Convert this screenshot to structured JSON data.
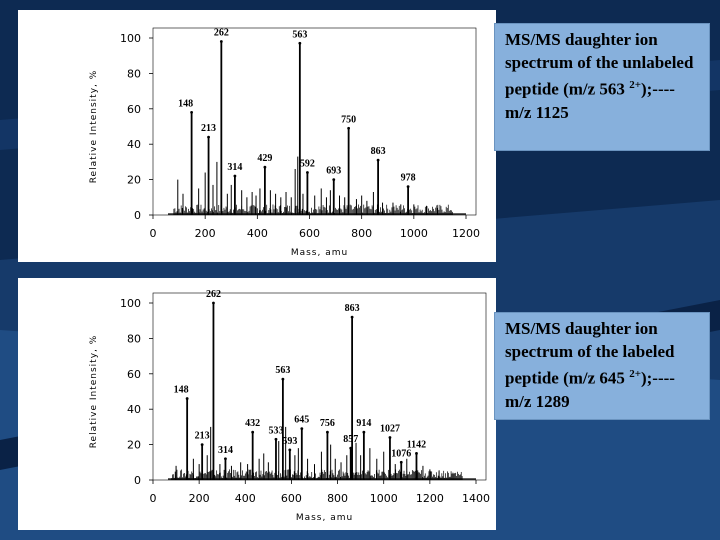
{
  "theme": {
    "slide_dark": "#0d2a52",
    "slide_mid": "#1f4c83",
    "caption_bg": "#87b0dc"
  },
  "captions": {
    "top": "MS/MS daughter ion spectrum of the unlabeled peptide (m/z 563 2+);---- m/z 1125",
    "bottom": "MS/MS daughter ion spectrum of the labeled peptide (m/z 645 2+);---- m/z 1289"
  },
  "chart_data": [
    {
      "type": "bar",
      "xlabel": "Mass, amu",
      "ylabel": "Relative Intensity, %",
      "xlim": [
        0,
        1200
      ],
      "ylim": [
        0,
        100
      ],
      "xticks": [
        0,
        200,
        400,
        600,
        800,
        1000,
        1200
      ],
      "yticks": [
        0,
        20,
        40,
        60,
        80,
        100
      ],
      "peaks": [
        {
          "x": 148,
          "y": 58,
          "label": "148"
        },
        {
          "x": 213,
          "y": 44,
          "label": "213"
        },
        {
          "x": 262,
          "y": 98,
          "label": "262"
        },
        {
          "x": 314,
          "y": 22,
          "label": "314"
        },
        {
          "x": 429,
          "y": 27,
          "label": "429"
        },
        {
          "x": 563,
          "y": 97,
          "label": "563"
        },
        {
          "x": 592,
          "y": 24,
          "label": "592"
        },
        {
          "x": 693,
          "y": 20,
          "label": "693"
        },
        {
          "x": 750,
          "y": 49,
          "label": "750"
        },
        {
          "x": 863,
          "y": 31,
          "label": "863"
        },
        {
          "x": 978,
          "y": 16,
          "label": "978"
        }
      ],
      "minor_peaks": [
        {
          "x": 95,
          "y": 20
        },
        {
          "x": 115,
          "y": 12
        },
        {
          "x": 175,
          "y": 15
        },
        {
          "x": 200,
          "y": 24
        },
        {
          "x": 230,
          "y": 17
        },
        {
          "x": 245,
          "y": 30
        },
        {
          "x": 285,
          "y": 12
        },
        {
          "x": 300,
          "y": 17
        },
        {
          "x": 340,
          "y": 14
        },
        {
          "x": 360,
          "y": 10
        },
        {
          "x": 380,
          "y": 13
        },
        {
          "x": 395,
          "y": 11
        },
        {
          "x": 410,
          "y": 15
        },
        {
          "x": 450,
          "y": 14
        },
        {
          "x": 470,
          "y": 12
        },
        {
          "x": 490,
          "y": 10
        },
        {
          "x": 510,
          "y": 13
        },
        {
          "x": 530,
          "y": 10
        },
        {
          "x": 545,
          "y": 26
        },
        {
          "x": 555,
          "y": 33
        },
        {
          "x": 575,
          "y": 12
        },
        {
          "x": 620,
          "y": 11
        },
        {
          "x": 645,
          "y": 15
        },
        {
          "x": 665,
          "y": 10
        },
        {
          "x": 680,
          "y": 14
        },
        {
          "x": 715,
          "y": 11
        },
        {
          "x": 735,
          "y": 10
        },
        {
          "x": 780,
          "y": 9
        },
        {
          "x": 800,
          "y": 11
        },
        {
          "x": 820,
          "y": 8
        },
        {
          "x": 845,
          "y": 13
        },
        {
          "x": 880,
          "y": 7
        },
        {
          "x": 920,
          "y": 7
        },
        {
          "x": 950,
          "y": 6
        },
        {
          "x": 1000,
          "y": 6
        },
        {
          "x": 1050,
          "y": 5
        },
        {
          "x": 1090,
          "y": 4
        }
      ]
    },
    {
      "type": "bar",
      "xlabel": "Mass, amu",
      "ylabel": "Relative Intensity, %",
      "xlim": [
        0,
        1400
      ],
      "ylim": [
        0,
        100
      ],
      "xticks": [
        0,
        200,
        400,
        600,
        800,
        1000,
        1200,
        1400
      ],
      "yticks": [
        0,
        20,
        40,
        60,
        80,
        100
      ],
      "peaks": [
        {
          "x": 148,
          "y": 46,
          "label": "148"
        },
        {
          "x": 213,
          "y": 20,
          "label": "213"
        },
        {
          "x": 262,
          "y": 100,
          "label": "262"
        },
        {
          "x": 314,
          "y": 12,
          "label": "314"
        },
        {
          "x": 432,
          "y": 27,
          "label": "432"
        },
        {
          "x": 533,
          "y": 23,
          "label": "533"
        },
        {
          "x": 563,
          "y": 57,
          "label": "563"
        },
        {
          "x": 593,
          "y": 17,
          "label": "593"
        },
        {
          "x": 645,
          "y": 29,
          "label": "645"
        },
        {
          "x": 756,
          "y": 27,
          "label": "756"
        },
        {
          "x": 857,
          "y": 18,
          "label": "857"
        },
        {
          "x": 863,
          "y": 92,
          "label": "863"
        },
        {
          "x": 914,
          "y": 27,
          "label": "914"
        },
        {
          "x": 1027,
          "y": 24,
          "label": "1027"
        },
        {
          "x": 1076,
          "y": 10,
          "label": "1076"
        },
        {
          "x": 1142,
          "y": 15,
          "label": "1142"
        }
      ],
      "minor_peaks": [
        {
          "x": 100,
          "y": 8
        },
        {
          "x": 175,
          "y": 12
        },
        {
          "x": 200,
          "y": 9
        },
        {
          "x": 235,
          "y": 14
        },
        {
          "x": 250,
          "y": 30
        },
        {
          "x": 290,
          "y": 9
        },
        {
          "x": 340,
          "y": 8
        },
        {
          "x": 380,
          "y": 10
        },
        {
          "x": 410,
          "y": 9
        },
        {
          "x": 460,
          "y": 12
        },
        {
          "x": 480,
          "y": 15
        },
        {
          "x": 500,
          "y": 10
        },
        {
          "x": 545,
          "y": 22
        },
        {
          "x": 575,
          "y": 30
        },
        {
          "x": 615,
          "y": 14
        },
        {
          "x": 630,
          "y": 18
        },
        {
          "x": 670,
          "y": 12
        },
        {
          "x": 700,
          "y": 9
        },
        {
          "x": 730,
          "y": 16
        },
        {
          "x": 770,
          "y": 20
        },
        {
          "x": 790,
          "y": 12
        },
        {
          "x": 815,
          "y": 10
        },
        {
          "x": 840,
          "y": 14
        },
        {
          "x": 880,
          "y": 21
        },
        {
          "x": 900,
          "y": 14
        },
        {
          "x": 940,
          "y": 18
        },
        {
          "x": 970,
          "y": 12
        },
        {
          "x": 1000,
          "y": 16
        },
        {
          "x": 1050,
          "y": 9
        },
        {
          "x": 1100,
          "y": 12
        },
        {
          "x": 1170,
          "y": 8
        },
        {
          "x": 1200,
          "y": 6
        },
        {
          "x": 1240,
          "y": 5
        }
      ]
    }
  ]
}
